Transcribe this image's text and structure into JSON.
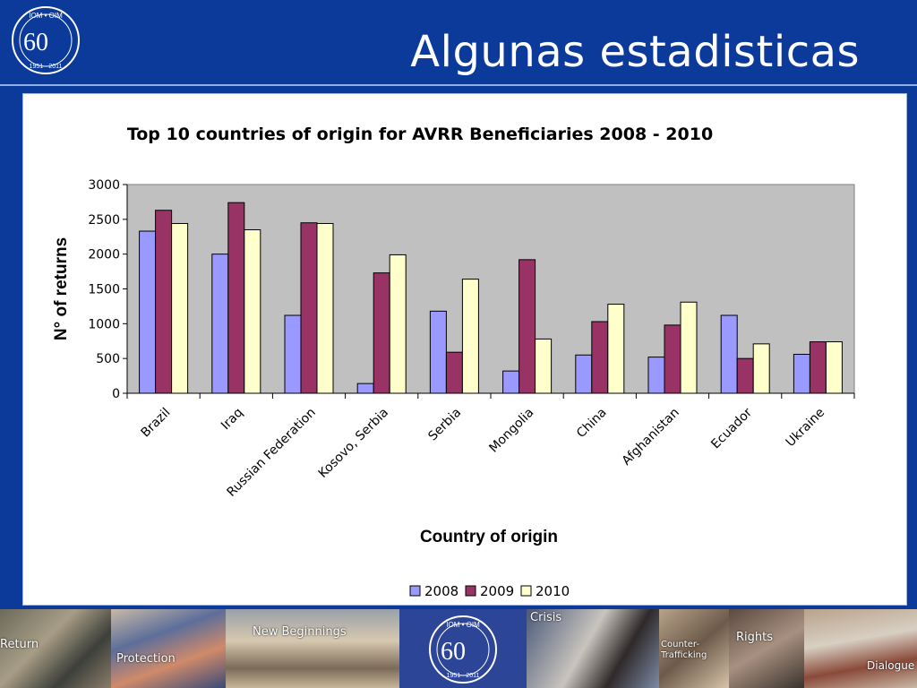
{
  "slide": {
    "title": "Algunas estadisticas",
    "logo": {
      "top": "IOM • OIM",
      "number": "60",
      "years": "1951 - 2011"
    }
  },
  "colors": {
    "background": "#0b3a9a",
    "plot_area": "#c0c0c0",
    "series_2008": "#9999ff",
    "series_2009": "#993366",
    "series_2010": "#ffffcc"
  },
  "chart_data": {
    "type": "bar",
    "title": "Top 10 countries of origin for AVRR Beneficiaries 2008 - 2010",
    "xlabel": "Country of origin",
    "ylabel": "N° of returns",
    "ylim": [
      0,
      3000
    ],
    "yticks": [
      "0",
      "500",
      "1000",
      "1500",
      "2000",
      "2500",
      "3000"
    ],
    "grid": false,
    "legend_position": "bottom",
    "categories": [
      "Brazil",
      "Iraq",
      "Russian Federation",
      "Kosovo, Serbia",
      "Serbia",
      "Mongolia",
      "China",
      "Afghanistan",
      "Ecuador",
      "Ukraine"
    ],
    "series": [
      {
        "name": "2008",
        "values": [
          2330,
          2000,
          1120,
          140,
          1180,
          320,
          550,
          520,
          1120,
          560
        ]
      },
      {
        "name": "2009",
        "values": [
          2630,
          2740,
          2450,
          1730,
          590,
          1920,
          1030,
          980,
          500,
          740
        ]
      },
      {
        "name": "2010",
        "values": [
          2440,
          2350,
          2440,
          1990,
          1640,
          780,
          1280,
          1310,
          710,
          740
        ]
      }
    ]
  },
  "banner": {
    "captions": [
      "Return",
      "Protection",
      "New Beginnings",
      "Crisis",
      "Counter-\nTrafficking",
      "Rights",
      "Dialogue"
    ],
    "logo": {
      "top": "IOM • OIM",
      "number": "60",
      "years": "1951 - 2011"
    }
  }
}
